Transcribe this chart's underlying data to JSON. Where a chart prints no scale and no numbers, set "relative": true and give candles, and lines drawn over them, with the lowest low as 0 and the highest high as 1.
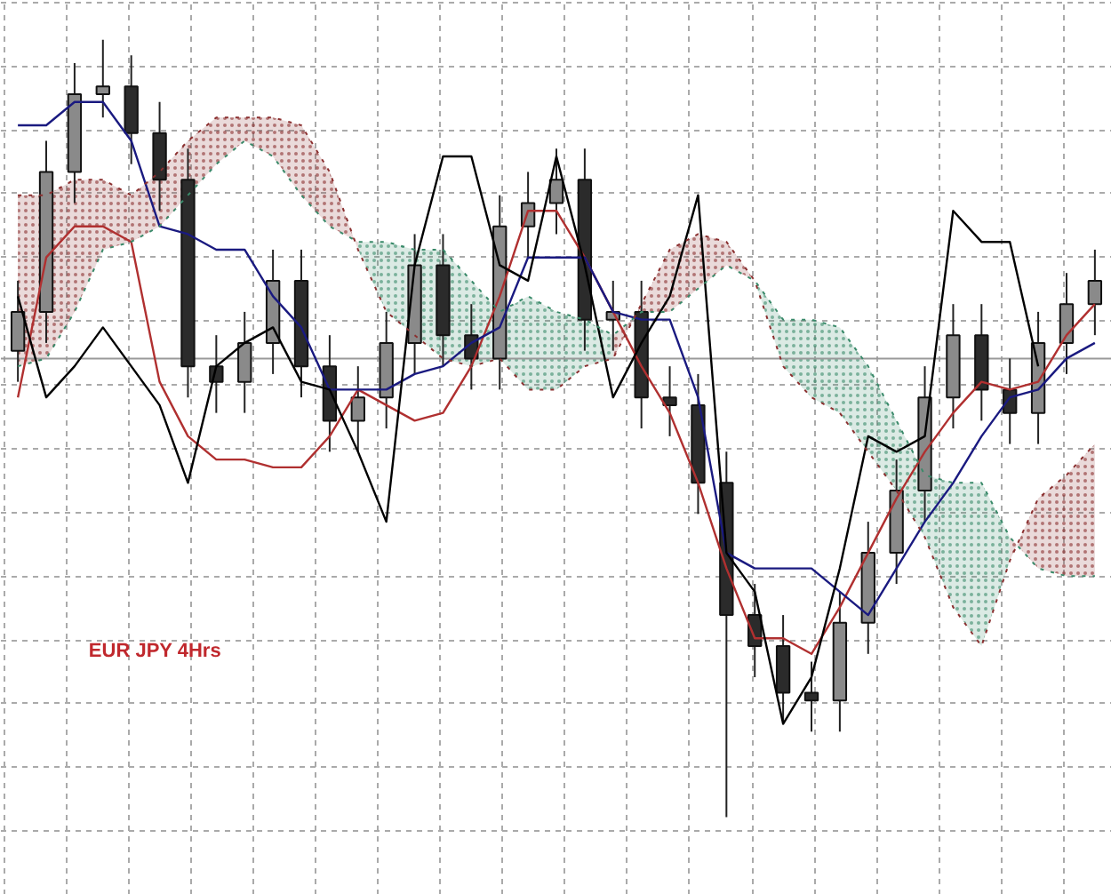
{
  "chart_data": {
    "type": "candlestick",
    "title": "EUR JPY 4Hrs",
    "relative": true,
    "tick_labels": false,
    "grid": true,
    "categories": [
      null,
      null,
      null,
      null,
      null,
      null,
      null,
      null,
      null,
      null,
      null,
      null,
      null,
      null,
      null,
      null,
      null,
      null,
      null,
      null,
      null,
      null,
      null,
      null,
      null,
      null,
      null,
      null,
      null,
      null,
      null,
      null,
      null,
      null,
      null,
      null,
      null,
      null,
      null
    ],
    "ohlc": [
      [
        0.6,
        0.69,
        0.56,
        0.65
      ],
      [
        0.65,
        0.87,
        0.61,
        0.83
      ],
      [
        0.83,
        0.97,
        0.79,
        0.93
      ],
      [
        0.93,
        1.0,
        0.9,
        0.94
      ],
      [
        0.94,
        0.98,
        0.84,
        0.88
      ],
      [
        0.88,
        0.92,
        0.78,
        0.82
      ],
      [
        0.82,
        0.86,
        0.54,
        0.58
      ],
      [
        0.58,
        0.62,
        0.52,
        0.56
      ],
      [
        0.56,
        0.65,
        0.52,
        0.61
      ],
      [
        0.61,
        0.73,
        0.57,
        0.69
      ],
      [
        0.69,
        0.73,
        0.54,
        0.58
      ],
      [
        0.58,
        0.62,
        0.47,
        0.51
      ],
      [
        0.51,
        0.58,
        0.47,
        0.54
      ],
      [
        0.54,
        0.65,
        0.5,
        0.61
      ],
      [
        0.61,
        0.75,
        0.57,
        0.71
      ],
      [
        0.71,
        0.75,
        0.58,
        0.62
      ],
      [
        0.62,
        0.66,
        0.55,
        0.59
      ],
      [
        0.59,
        0.8,
        0.55,
        0.76
      ],
      [
        0.76,
        0.83,
        0.72,
        0.79
      ],
      [
        0.79,
        0.86,
        0.75,
        0.82
      ],
      [
        0.82,
        0.86,
        0.6,
        0.64
      ],
      [
        0.64,
        0.69,
        0.6,
        0.65
      ],
      [
        0.65,
        0.69,
        0.5,
        0.54
      ],
      [
        0.54,
        0.58,
        0.49,
        0.53
      ],
      [
        0.53,
        0.57,
        0.39,
        0.43
      ],
      [
        0.43,
        0.47,
        0.0,
        0.26
      ],
      [
        0.26,
        0.3,
        0.18,
        0.22
      ],
      [
        0.22,
        0.26,
        0.12,
        0.16
      ],
      [
        0.16,
        0.2,
        0.11,
        0.15
      ],
      [
        0.15,
        0.29,
        0.11,
        0.25
      ],
      [
        0.25,
        0.38,
        0.21,
        0.34
      ],
      [
        0.34,
        0.46,
        0.3,
        0.42
      ],
      [
        0.42,
        0.58,
        0.38,
        0.54
      ],
      [
        0.54,
        0.66,
        0.5,
        0.62
      ],
      [
        0.62,
        0.66,
        0.51,
        0.55
      ],
      [
        0.55,
        0.59,
        0.48,
        0.52
      ],
      [
        0.52,
        0.65,
        0.48,
        0.61
      ],
      [
        0.61,
        0.7,
        0.57,
        0.66
      ],
      [
        0.66,
        0.73,
        0.62,
        0.69
      ]
    ],
    "series": [
      {
        "type": "line",
        "color": "#b03030",
        "values": [
          0.54,
          0.72,
          0.76,
          0.76,
          0.74,
          0.56,
          0.49,
          0.46,
          0.46,
          0.45,
          0.45,
          0.49,
          0.55,
          0.53,
          0.51,
          0.52,
          0.58,
          0.67,
          0.78,
          0.78,
          0.72,
          0.65,
          0.58,
          0.52,
          0.43,
          0.32,
          0.23,
          0.23,
          0.21,
          0.27,
          0.34,
          0.41,
          0.47,
          0.52,
          0.56,
          0.55,
          0.56,
          0.62,
          0.66
        ]
      },
      {
        "type": "line",
        "color": "#1a1a80",
        "values": [
          0.89,
          0.89,
          0.92,
          0.92,
          0.87,
          0.76,
          0.75,
          0.73,
          0.73,
          0.67,
          0.63,
          0.55,
          0.55,
          0.55,
          0.57,
          0.58,
          0.61,
          0.63,
          0.72,
          0.72,
          0.72,
          0.65,
          0.64,
          0.64,
          0.54,
          0.34,
          0.32,
          0.32,
          0.32,
          0.29,
          0.26,
          0.32,
          0.38,
          0.43,
          0.49,
          0.54,
          0.55,
          0.59,
          0.61
        ]
      },
      {
        "type": "line",
        "color": "#000000",
        "values": [
          0.67,
          0.54,
          0.58,
          0.63,
          0.58,
          0.53,
          0.43,
          0.58,
          0.61,
          0.63,
          0.56,
          0.55,
          0.47,
          0.38,
          0.71,
          0.85,
          0.85,
          0.71,
          0.69,
          0.85,
          0.71,
          0.54,
          0.61,
          0.67,
          0.8,
          0.34,
          0.29,
          0.12,
          0.18,
          0.32,
          0.49,
          0.47,
          0.49,
          0.78,
          0.74,
          0.74,
          0.58,
          null,
          null
        ]
      },
      {
        "type": "line",
        "color": "#3a8a6a",
        "line_style": "dotted",
        "values": [
          0.58,
          0.59,
          0.65,
          0.73,
          0.74,
          0.76,
          0.8,
          0.84,
          0.87,
          0.85,
          0.8,
          0.76,
          0.74,
          0.74,
          0.73,
          0.73,
          0.69,
          0.65,
          0.67,
          0.65,
          0.64,
          0.62,
          0.65,
          0.65,
          0.68,
          0.71,
          0.69,
          0.64,
          0.64,
          0.63,
          0.58,
          0.51,
          0.44,
          0.43,
          0.43,
          0.36,
          0.32,
          0.31,
          0.31
        ],
        "upper": [
          null,
          null,
          null,
          null,
          null,
          null,
          null,
          null,
          null,
          null,
          null,
          null,
          0.74,
          0.74,
          0.73,
          0.73,
          0.69,
          0.65,
          0.67,
          0.65,
          0.64,
          0.62,
          null,
          null,
          null,
          null,
          0.69,
          0.64,
          0.64,
          0.63,
          0.58,
          0.51,
          0.44,
          0.43,
          0.43,
          0.36,
          null,
          null,
          null
        ],
        "lower": [
          null,
          null,
          null,
          null,
          null,
          null,
          null,
          null,
          null,
          null,
          null,
          null,
          0.73,
          0.65,
          0.62,
          0.59,
          0.58,
          0.59,
          0.55,
          0.55,
          0.58,
          0.59,
          null,
          null,
          null,
          null,
          0.69,
          0.58,
          0.54,
          0.52,
          0.47,
          0.42,
          0.36,
          0.27,
          0.22,
          0.33,
          null,
          null,
          null
        ]
      },
      {
        "type": "line",
        "color": "#8b3030",
        "line_style": "dotted",
        "values": [
          0.8,
          0.8,
          0.82,
          0.82,
          0.8,
          0.83,
          0.87,
          0.9,
          0.9,
          0.9,
          0.89,
          0.83,
          0.73,
          0.65,
          0.62,
          0.59,
          0.58,
          0.59,
          0.55,
          0.55,
          0.58,
          0.59,
          0.66,
          0.73,
          0.75,
          0.74,
          0.69,
          0.58,
          0.54,
          0.52,
          0.47,
          0.42,
          0.36,
          0.27,
          0.22,
          0.33,
          0.41,
          0.44,
          0.48
        ],
        "upper": [
          0.8,
          0.8,
          0.82,
          0.82,
          0.8,
          0.83,
          0.87,
          0.9,
          0.9,
          0.9,
          0.89,
          0.83,
          0.73,
          null,
          null,
          null,
          null,
          null,
          null,
          null,
          null,
          0.59,
          0.66,
          0.73,
          0.75,
          0.74,
          0.69,
          null,
          null,
          null,
          null,
          null,
          null,
          null,
          null,
          0.33,
          0.41,
          0.44,
          0.48
        ],
        "lower": [
          0.58,
          0.59,
          0.65,
          0.73,
          0.74,
          0.76,
          0.8,
          0.84,
          0.87,
          0.85,
          0.8,
          0.76,
          0.74,
          null,
          null,
          null,
          null,
          null,
          null,
          null,
          null,
          0.62,
          0.65,
          0.65,
          0.68,
          0.71,
          0.69,
          null,
          null,
          null,
          null,
          null,
          null,
          null,
          null,
          0.36,
          0.32,
          0.31,
          0.31
        ]
      }
    ],
    "ref_lines": [
      {
        "axis": "y",
        "value": 0.59,
        "color": "#999999"
      }
    ]
  }
}
